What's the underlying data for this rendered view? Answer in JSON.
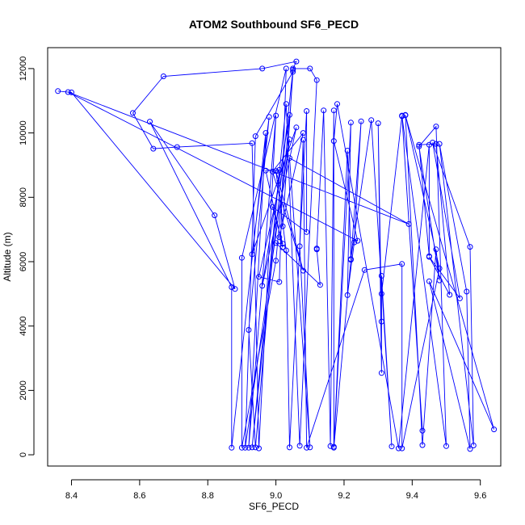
{
  "chart_data": {
    "type": "line",
    "title": "ATOM2 Southbound SF6_PECD",
    "xlabel": "SF6_PECD",
    "ylabel": "Altitude (m)",
    "xlim": [
      8.33,
      9.66
    ],
    "ylim": [
      -350,
      12650
    ],
    "xticks": [
      8.4,
      8.6,
      8.8,
      9.0,
      9.2,
      9.4,
      9.6
    ],
    "xtick_labels": [
      "8.4",
      "8.6",
      "8.8",
      "9.0",
      "9.2",
      "9.4",
      "9.6"
    ],
    "yticks": [
      0,
      2000,
      4000,
      6000,
      8000,
      10000,
      12000
    ],
    "ytick_labels": [
      "0",
      "2000",
      "4000",
      "6000",
      "8000",
      "10000",
      "12000"
    ],
    "grid": false,
    "legend": "none",
    "series": [
      {
        "color": "#0000ff",
        "marker": "open-circle",
        "points": [
          [
            8.36,
            11300
          ],
          [
            8.4,
            11260
          ],
          [
            8.88,
            5150
          ],
          [
            8.82,
            7440
          ],
          [
            8.63,
            10350
          ],
          [
            8.87,
            5210
          ],
          [
            8.87,
            220
          ],
          [
            8.97,
            10000
          ],
          [
            8.92,
            220
          ],
          [
            9.0,
            10540
          ],
          [
            8.95,
            200
          ],
          [
            8.93,
            9680
          ],
          [
            8.71,
            9560
          ],
          [
            8.64,
            9510
          ],
          [
            8.58,
            10620
          ],
          [
            8.67,
            11760
          ],
          [
            8.96,
            12000
          ],
          [
            9.06,
            12220
          ],
          [
            9.05,
            12000
          ],
          [
            9.1,
            12000
          ],
          [
            9.12,
            11640
          ],
          [
            9.07,
            280
          ],
          [
            9.03,
            10900
          ],
          [
            8.93,
            230
          ],
          [
            9.05,
            11960
          ],
          [
            9.02,
            7100
          ],
          [
            9.05,
            11900
          ],
          [
            8.94,
            9900
          ],
          [
            8.91,
            220
          ],
          [
            9.04,
            9800
          ],
          [
            8.95,
            5530
          ],
          [
            9.01,
            5370
          ],
          [
            9.03,
            12000
          ],
          [
            8.9,
            6120
          ],
          [
            8.9,
            220
          ],
          [
            9.0,
            6030
          ],
          [
            9.04,
            10560
          ],
          [
            8.96,
            5250
          ],
          [
            9.06,
            10170
          ],
          [
            8.93,
            6230
          ],
          [
            8.98,
            10500
          ],
          [
            8.92,
            3880
          ],
          [
            8.94,
            230
          ],
          [
            9.01,
            8850
          ],
          [
            8.97,
            8830
          ],
          [
            9.02,
            6440
          ],
          [
            9.01,
            6760
          ],
          [
            9.08,
            10000
          ],
          [
            8.99,
            8800
          ],
          [
            9.08,
            5720
          ],
          [
            9.0,
            8820
          ],
          [
            9.03,
            6350
          ],
          [
            9.04,
            230
          ],
          [
            9.09,
            10680
          ],
          [
            9.09,
            6920
          ],
          [
            8.99,
            7700
          ],
          [
            9.02,
            6560
          ],
          [
            9.0,
            6580
          ],
          [
            9.13,
            5280
          ],
          [
            9.12,
            6380
          ],
          [
            9.12,
            6410
          ],
          [
            9.14,
            10700
          ],
          [
            9.16,
            270
          ],
          [
            9.17,
            10700
          ],
          [
            9.17,
            250
          ],
          [
            9.22,
            10320
          ],
          [
            9.21,
            4960
          ],
          [
            9.23,
            6600
          ],
          [
            9.25,
            10360
          ],
          [
            9.22,
            6060
          ],
          [
            9.17,
            220
          ],
          [
            9.21,
            9450
          ],
          [
            9.22,
            6080
          ],
          [
            9.28,
            10400
          ],
          [
            9.34,
            260
          ],
          [
            9.31,
            5560
          ],
          [
            9.31,
            4140
          ],
          [
            9.3,
            10300
          ],
          [
            9.31,
            2540
          ],
          [
            9.31,
            5000
          ],
          [
            9.37,
            10540
          ],
          [
            9.43,
            750
          ],
          [
            9.37,
            10520
          ],
          [
            9.5,
            270
          ],
          [
            9.47,
            10200
          ],
          [
            9.42,
            9580
          ],
          [
            9.48,
            5420
          ],
          [
            9.47,
            6380
          ],
          [
            9.43,
            300
          ],
          [
            9.38,
            10560
          ],
          [
            9.48,
            5790
          ],
          [
            9.37,
            200
          ],
          [
            9.37,
            5930
          ],
          [
            9.26,
            5740
          ],
          [
            9.09,
            220
          ],
          [
            9.08,
            9790
          ],
          [
            9.07,
            6480
          ],
          [
            9.1,
            230
          ],
          [
            9.04,
            9220
          ],
          [
            9.39,
            7170
          ],
          [
            8.39,
            11270
          ],
          [
            9.24,
            6650
          ],
          [
            9.17,
            9750
          ],
          [
            9.18,
            10900
          ],
          [
            9.36,
            200
          ],
          [
            9.45,
            9630
          ],
          [
            9.45,
            6170
          ],
          [
            9.42,
            9630
          ],
          [
            9.47,
            9660
          ],
          [
            9.51,
            4970
          ],
          [
            9.45,
            6150
          ],
          [
            9.54,
            4860
          ],
          [
            9.46,
            9700
          ],
          [
            9.57,
            6460
          ],
          [
            9.58,
            290
          ],
          [
            9.48,
            9660
          ],
          [
            9.56,
            5070
          ],
          [
            9.57,
            180
          ],
          [
            9.45,
            5390
          ],
          [
            9.64,
            790
          ],
          [
            9.38,
            10550
          ]
        ]
      }
    ]
  }
}
